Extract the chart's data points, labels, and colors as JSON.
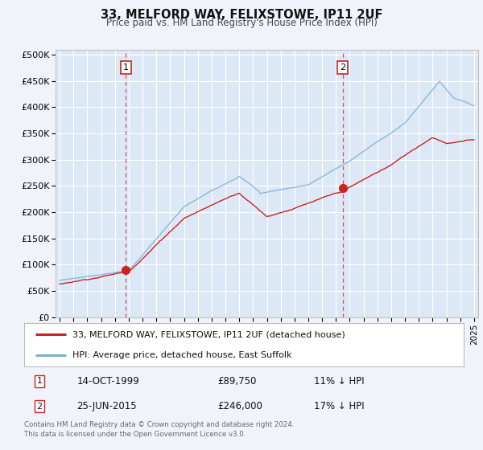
{
  "title": "33, MELFORD WAY, FELIXSTOWE, IP11 2UF",
  "subtitle": "Price paid vs. HM Land Registry's House Price Index (HPI)",
  "background_color": "#f0f4fa",
  "plot_bg_color": "#dce8f5",
  "grid_color": "#ffffff",
  "ytick_labels": [
    "£0",
    "£50K",
    "£100K",
    "£150K",
    "£200K",
    "£250K",
    "£300K",
    "£350K",
    "£400K",
    "£450K",
    "£500K"
  ],
  "yticks": [
    0,
    50000,
    100000,
    150000,
    200000,
    250000,
    300000,
    350000,
    400000,
    450000,
    500000
  ],
  "xmin": 1994.7,
  "xmax": 2025.3,
  "ymin": 0,
  "ymax": 510000,
  "sale1_x": 1999.79,
  "sale1_y": 89750,
  "sale2_x": 2015.48,
  "sale2_y": 246000,
  "sale1_date": "14-OCT-1999",
  "sale1_price": "£89,750",
  "sale1_hpi": "11% ↓ HPI",
  "sale2_date": "25-JUN-2015",
  "sale2_price": "£246,000",
  "sale2_hpi": "17% ↓ HPI",
  "legend_line1": "33, MELFORD WAY, FELIXSTOWE, IP11 2UF (detached house)",
  "legend_line2": "HPI: Average price, detached house, East Suffolk",
  "footer": "Contains HM Land Registry data © Crown copyright and database right 2024.\nThis data is licensed under the Open Government Licence v3.0.",
  "red_color": "#cc2222",
  "blue_color": "#7ab0d4"
}
